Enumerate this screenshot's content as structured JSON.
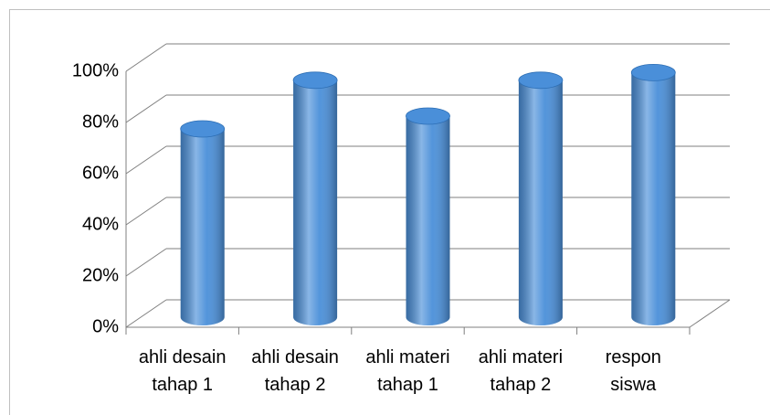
{
  "chart_data": {
    "type": "bar3d",
    "categories": [
      "ahli desain\ntahap 1",
      "ahli desain\ntahap 2",
      "ahli materi\ntahap 1",
      "ahli materi\ntahap 2",
      "respon\nsiswa"
    ],
    "values": [
      75,
      94,
      80,
      94,
      97
    ],
    "color": "#4a8fd9",
    "ylim": [
      0,
      100
    ],
    "yticks": [
      {
        "value": 0,
        "label": "0%"
      },
      {
        "value": 20,
        "label": "20%"
      },
      {
        "value": 40,
        "label": "40%"
      },
      {
        "value": 60,
        "label": "60%"
      },
      {
        "value": 80,
        "label": "80%"
      },
      {
        "value": 100,
        "label": "100%"
      }
    ],
    "grid": true
  }
}
